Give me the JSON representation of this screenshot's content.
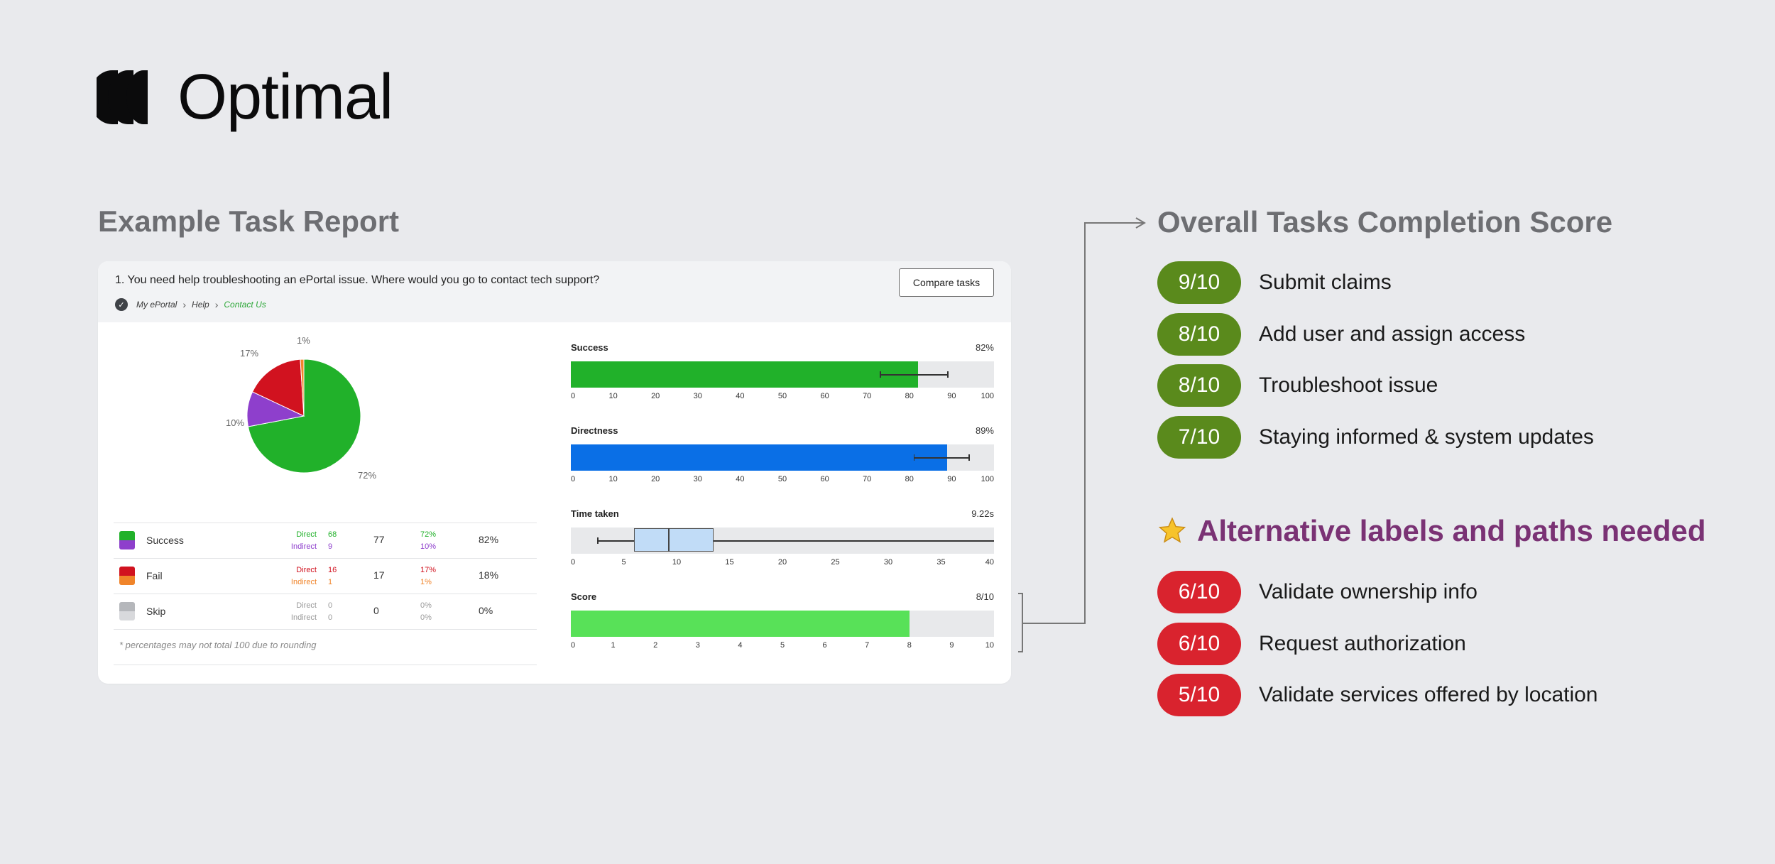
{
  "brand": {
    "name": "Optimal"
  },
  "report_title": "Example Task Report",
  "card": {
    "question": "1. You need help troubleshooting an ePortal issue. Where would you go to contact tech support?",
    "breadcrumb": [
      "My ePortal",
      "Help",
      "Contact Us"
    ],
    "compare_label": "Compare tasks",
    "pie": {
      "slices": [
        {
          "label": "Success direct",
          "value": 72,
          "color": "#21b12a"
        },
        {
          "label": "Success indirect",
          "value": 10,
          "color": "#8e3fcc"
        },
        {
          "label": "Fail direct",
          "value": 17,
          "color": "#d1121f"
        },
        {
          "label": "Fail indirect",
          "value": 1,
          "color": "#f0842a"
        }
      ],
      "labels": [
        "72%",
        "10%",
        "17%",
        "1%"
      ]
    },
    "legend": [
      {
        "name": "Success",
        "colors": [
          "#21b12a",
          "#8e3fcc"
        ],
        "direct_label": "Direct",
        "indirect_label": "Indirect",
        "direct": "68",
        "indirect": "9",
        "total": "77",
        "direct_pct": "72%",
        "indirect_pct": "10%",
        "pct": "82%",
        "direct_color": "#21b12a",
        "indirect_color": "#8e3fcc"
      },
      {
        "name": "Fail",
        "colors": [
          "#d1121f",
          "#f0842a"
        ],
        "direct_label": "Direct",
        "indirect_label": "Indirect",
        "direct": "16",
        "indirect": "1",
        "total": "17",
        "direct_pct": "17%",
        "indirect_pct": "1%",
        "pct": "18%",
        "direct_color": "#d1121f",
        "indirect_color": "#f0842a"
      },
      {
        "name": "Skip",
        "colors": [
          "#b5b7bb",
          "#d8d9dc"
        ],
        "direct_label": "Direct",
        "indirect_label": "Indirect",
        "direct": "0",
        "indirect": "0",
        "total": "0",
        "direct_pct": "0%",
        "indirect_pct": "0%",
        "pct": "0%",
        "direct_color": "#999",
        "indirect_color": "#999"
      }
    ],
    "footnote": "* percentages may not total 100 due to rounding",
    "metrics": {
      "success": {
        "label": "Success",
        "value": "82%",
        "fill": 82,
        "err": [
          73,
          89
        ],
        "color": "#21b12a",
        "ticks": [
          "0",
          "10",
          "20",
          "30",
          "40",
          "50",
          "60",
          "70",
          "80",
          "90",
          "100"
        ]
      },
      "directness": {
        "label": "Directness",
        "value": "89%",
        "fill": 89,
        "err": [
          81,
          94
        ],
        "color": "#0a6fe6",
        "ticks": [
          "0",
          "10",
          "20",
          "30",
          "40",
          "50",
          "60",
          "70",
          "80",
          "90",
          "100"
        ]
      },
      "time": {
        "label": "Time taken",
        "value": "9.22s",
        "whisker_low": 2.5,
        "q1": 6,
        "median": 9.22,
        "q3": 13.5,
        "whisker_high": 40,
        "ticks": [
          "0",
          "5",
          "10",
          "15",
          "20",
          "25",
          "30",
          "35",
          "40"
        ]
      },
      "score": {
        "label": "Score",
        "value": "8/10",
        "fill": 8,
        "color": "#58e158",
        "ticks": [
          "0",
          "1",
          "2",
          "3",
          "4",
          "5",
          "6",
          "7",
          "8",
          "9",
          "10"
        ]
      }
    }
  },
  "overall": {
    "title": "Overall Tasks Completion Score",
    "items": [
      {
        "score": "9/10",
        "label": "Submit claims"
      },
      {
        "score": "8/10",
        "label": "Add user and assign access"
      },
      {
        "score": "8/10",
        "label": "Troubleshoot issue"
      },
      {
        "score": "7/10",
        "label": "Staying informed & system updates"
      }
    ]
  },
  "alternative": {
    "icon": "star-icon",
    "title": "Alternative labels and paths needed",
    "items": [
      {
        "score": "6/10",
        "label": "Validate ownership info"
      },
      {
        "score": "6/10",
        "label": "Request authorization"
      },
      {
        "score": "5/10",
        "label": "Validate services offered by location"
      }
    ]
  }
}
